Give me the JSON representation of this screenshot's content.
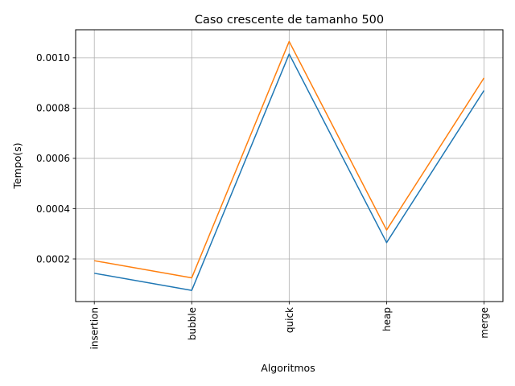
{
  "chart_data": {
    "type": "line",
    "title": "Caso crescente de tamanho 500",
    "xlabel": "Algoritmos",
    "ylabel": "Tempo(s)",
    "categories": [
      "insertion",
      "bubble",
      "quick",
      "heap",
      "merge"
    ],
    "series": [
      {
        "color": "#1f77b4",
        "values": [
          0.000143,
          7.5e-05,
          0.001015,
          0.000265,
          0.00087
        ]
      },
      {
        "color": "#ff7f0e",
        "values": [
          0.000193,
          0.000125,
          0.001065,
          0.000315,
          0.00092
        ]
      }
    ],
    "ylim": [
      3.05e-05,
      0.0011115
    ],
    "yticks": [
      0.0002,
      0.0004,
      0.0006,
      0.0008,
      0.001
    ],
    "ytick_labels": [
      "0.0002",
      "0.0004",
      "0.0006",
      "0.0008",
      "0.0010"
    ],
    "grid": true,
    "legend": false
  }
}
